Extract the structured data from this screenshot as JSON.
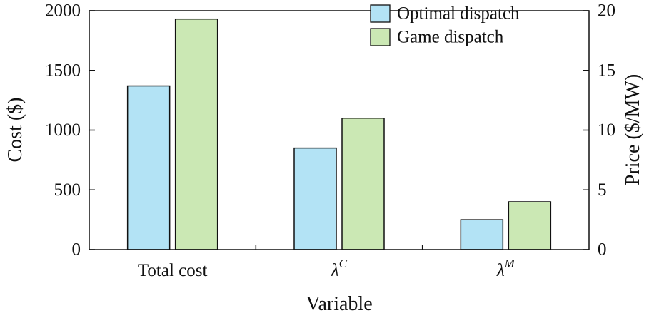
{
  "chart_data": {
    "type": "bar",
    "xlabel": "Variable",
    "categories": [
      {
        "main": "Total cost",
        "sup": ""
      },
      {
        "main": "λ",
        "sup": "C"
      },
      {
        "main": "λ",
        "sup": "M"
      }
    ],
    "left_axis": {
      "label": "Cost ($)",
      "range": [
        0,
        2000
      ],
      "ticks": [
        0,
        500,
        1000,
        1500,
        2000
      ]
    },
    "right_axis": {
      "label": "Price ($/MW)",
      "range": [
        0,
        20
      ],
      "ticks": [
        0,
        5,
        10,
        15,
        20
      ]
    },
    "series": [
      {
        "name": "Optimal dispatch",
        "color": "#b3e3f5",
        "values": [
          1370,
          8.5,
          2.5
        ],
        "axes": [
          "left",
          "right",
          "right"
        ]
      },
      {
        "name": "Game dispatch",
        "color": "#cbe8b4",
        "values": [
          1930,
          11.0,
          4.0
        ],
        "axes": [
          "left",
          "right",
          "right"
        ]
      }
    ],
    "legend": "top-right",
    "grid": false
  }
}
